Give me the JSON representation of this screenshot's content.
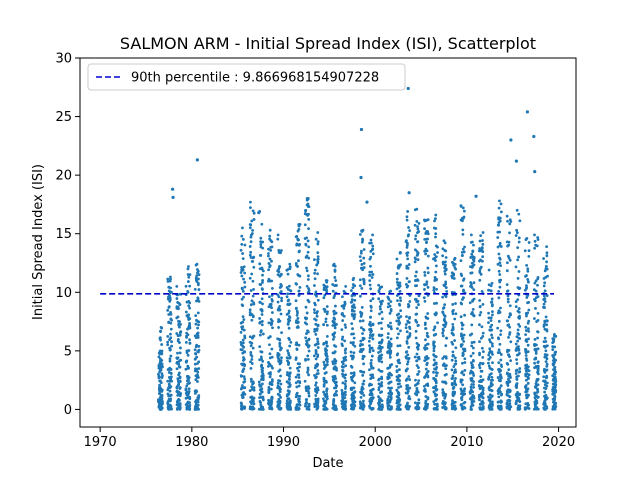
{
  "chart_data": {
    "type": "scatter",
    "title": "SALMON ARM - Initial Spread Index (ISI), Scatterplot",
    "xlabel": "Date",
    "ylabel": "Initial Spread Index (ISI)",
    "xlim": [
      1967.8,
      2021.9
    ],
    "ylim": [
      -1.5,
      30.0
    ],
    "xticks": [
      1970,
      1980,
      1990,
      2000,
      2010,
      2020
    ],
    "yticks": [
      0,
      5,
      10,
      15,
      20,
      25,
      30
    ],
    "grid": false,
    "legend_position": "top-left",
    "point_color": "#1f77b4",
    "reference_line": {
      "label": "90th percentile : 9.866968154907228",
      "value": 9.866968154907228,
      "x_start": 1970,
      "x_end": 2019.5,
      "color": "#0000cc",
      "style": "dashed"
    },
    "seasons": [
      {
        "year": 1976,
        "start": 1976.35,
        "end": 1976.8,
        "max": 7.0
      },
      {
        "year": 1977,
        "start": 1977.35,
        "end": 1977.8,
        "max": 11.3
      },
      {
        "year": 1978,
        "start": 1978.35,
        "end": 1978.8,
        "max": 10.5
      },
      {
        "year": 1979,
        "start": 1979.35,
        "end": 1979.8,
        "max": 12.2
      },
      {
        "year": 1980,
        "start": 1980.35,
        "end": 1980.8,
        "max": 12.4
      },
      {
        "year": 1985,
        "start": 1985.35,
        "end": 1985.8,
        "max": 15.5
      },
      {
        "year": 1986,
        "start": 1986.35,
        "end": 1986.8,
        "max": 17.7
      },
      {
        "year": 1987,
        "start": 1987.35,
        "end": 1987.8,
        "max": 16.9
      },
      {
        "year": 1988,
        "start": 1988.35,
        "end": 1988.8,
        "max": 15.3
      },
      {
        "year": 1989,
        "start": 1989.35,
        "end": 1989.8,
        "max": 14.9
      },
      {
        "year": 1990,
        "start": 1990.35,
        "end": 1990.8,
        "max": 12.4
      },
      {
        "year": 1991,
        "start": 1991.35,
        "end": 1991.8,
        "max": 15.8
      },
      {
        "year": 1992,
        "start": 1992.35,
        "end": 1992.8,
        "max": 18.0
      },
      {
        "year": 1993,
        "start": 1993.35,
        "end": 1993.8,
        "max": 15.1
      },
      {
        "year": 1994,
        "start": 1994.35,
        "end": 1994.8,
        "max": 11.0
      },
      {
        "year": 1995,
        "start": 1995.35,
        "end": 1995.8,
        "max": 12.4
      },
      {
        "year": 1996,
        "start": 1996.35,
        "end": 1996.8,
        "max": 10.5
      },
      {
        "year": 1997,
        "start": 1997.35,
        "end": 1997.8,
        "max": 11.2
      },
      {
        "year": 1998,
        "start": 1998.35,
        "end": 1998.8,
        "max": 15.3
      },
      {
        "year": 1999,
        "start": 1999.35,
        "end": 1999.8,
        "max": 14.9
      },
      {
        "year": 2000,
        "start": 2000.35,
        "end": 2000.8,
        "max": 10.6
      },
      {
        "year": 2001,
        "start": 2001.35,
        "end": 2001.8,
        "max": 10.1
      },
      {
        "year": 2002,
        "start": 2002.35,
        "end": 2002.8,
        "max": 13.4
      },
      {
        "year": 2003,
        "start": 2003.35,
        "end": 2003.8,
        "max": 16.9
      },
      {
        "year": 2004,
        "start": 2004.35,
        "end": 2004.8,
        "max": 17.1
      },
      {
        "year": 2005,
        "start": 2005.35,
        "end": 2005.8,
        "max": 16.2
      },
      {
        "year": 2006,
        "start": 2006.35,
        "end": 2006.8,
        "max": 16.6
      },
      {
        "year": 2007,
        "start": 2007.35,
        "end": 2007.8,
        "max": 14.4
      },
      {
        "year": 2008,
        "start": 2008.35,
        "end": 2008.8,
        "max": 12.9
      },
      {
        "year": 2009,
        "start": 2009.35,
        "end": 2009.8,
        "max": 17.4
      },
      {
        "year": 2010,
        "start": 2010.35,
        "end": 2010.8,
        "max": 14.9
      },
      {
        "year": 2011,
        "start": 2011.35,
        "end": 2011.8,
        "max": 15.1
      },
      {
        "year": 2012,
        "start": 2012.35,
        "end": 2012.8,
        "max": 11.9
      },
      {
        "year": 2013,
        "start": 2013.35,
        "end": 2013.8,
        "max": 17.8
      },
      {
        "year": 2014,
        "start": 2014.35,
        "end": 2014.8,
        "max": 16.5
      },
      {
        "year": 2015,
        "start": 2015.35,
        "end": 2015.8,
        "max": 17.0
      },
      {
        "year": 2016,
        "start": 2016.35,
        "end": 2016.8,
        "max": 14.6
      },
      {
        "year": 2017,
        "start": 2017.35,
        "end": 2017.8,
        "max": 14.9
      },
      {
        "year": 2018,
        "start": 2018.35,
        "end": 2018.8,
        "max": 13.9
      },
      {
        "year": 2019,
        "start": 2019.35,
        "end": 2019.7,
        "max": 6.4
      }
    ],
    "outliers": [
      {
        "x": 1977.9,
        "y": 18.8
      },
      {
        "x": 1977.95,
        "y": 18.1
      },
      {
        "x": 1980.6,
        "y": 21.3
      },
      {
        "x": 1987.3,
        "y": 16.8
      },
      {
        "x": 1992.6,
        "y": 18.0
      },
      {
        "x": 1998.5,
        "y": 23.9
      },
      {
        "x": 1998.45,
        "y": 19.8
      },
      {
        "x": 1999.1,
        "y": 17.7
      },
      {
        "x": 2003.6,
        "y": 27.4
      },
      {
        "x": 2003.7,
        "y": 18.5
      },
      {
        "x": 2011.0,
        "y": 18.2
      },
      {
        "x": 2014.8,
        "y": 23.0
      },
      {
        "x": 2015.4,
        "y": 21.2
      },
      {
        "x": 2016.6,
        "y": 25.4
      },
      {
        "x": 2017.3,
        "y": 23.3
      },
      {
        "x": 2017.4,
        "y": 20.3
      }
    ]
  }
}
